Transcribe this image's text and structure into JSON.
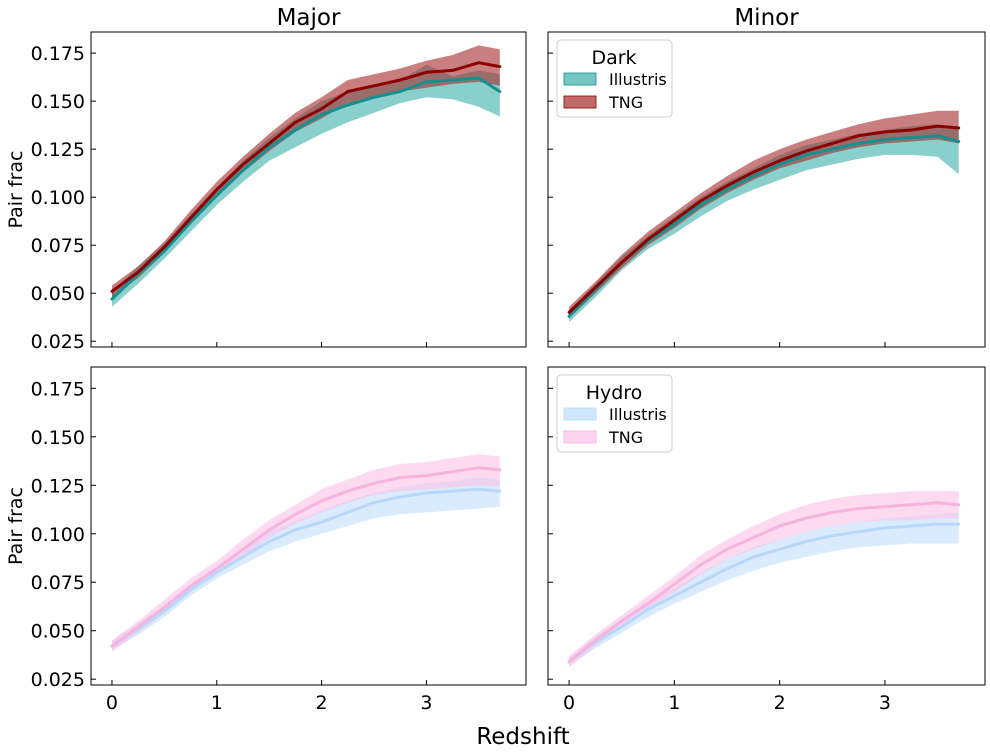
{
  "figure": {
    "xlabel": "Redshift",
    "ylabel": "Pair frac"
  },
  "chart_data": [
    {
      "type": "line",
      "title": "Major",
      "legend": null,
      "xlim": [
        -0.2,
        3.95
      ],
      "ylim": [
        0.022,
        0.186
      ],
      "xticks": [
        0,
        1,
        2,
        3
      ],
      "yticks": [
        0.025,
        0.05,
        0.075,
        0.1,
        0.125,
        0.15,
        0.175
      ],
      "series": [
        {
          "name": "Illustris",
          "color": "#15908f",
          "band_color": "#3aafa9",
          "band_opacity": 0.6,
          "x": [
            0,
            0.25,
            0.5,
            0.75,
            1.0,
            1.25,
            1.5,
            1.75,
            2.0,
            2.25,
            2.5,
            2.75,
            3.0,
            3.25,
            3.5,
            3.7
          ],
          "y": [
            0.047,
            0.06,
            0.072,
            0.087,
            0.101,
            0.114,
            0.126,
            0.135,
            0.143,
            0.148,
            0.152,
            0.155,
            0.16,
            0.161,
            0.162,
            0.155
          ],
          "lower": [
            0.043,
            0.055,
            0.068,
            0.082,
            0.096,
            0.108,
            0.119,
            0.126,
            0.133,
            0.139,
            0.144,
            0.149,
            0.152,
            0.151,
            0.147,
            0.142
          ],
          "upper": [
            0.051,
            0.064,
            0.076,
            0.091,
            0.105,
            0.119,
            0.131,
            0.141,
            0.15,
            0.155,
            0.158,
            0.161,
            0.169,
            0.163,
            0.166,
            0.164
          ]
        },
        {
          "name": "TNG",
          "color": "#8b0000",
          "band_color": "#a52a2a",
          "band_opacity": 0.6,
          "x": [
            0,
            0.25,
            0.5,
            0.75,
            1.0,
            1.25,
            1.5,
            1.75,
            2.0,
            2.25,
            2.5,
            2.75,
            3.0,
            3.25,
            3.5,
            3.7
          ],
          "y": [
            0.051,
            0.061,
            0.074,
            0.089,
            0.104,
            0.117,
            0.128,
            0.139,
            0.146,
            0.155,
            0.158,
            0.161,
            0.165,
            0.166,
            0.17,
            0.168
          ],
          "lower": [
            0.048,
            0.058,
            0.071,
            0.086,
            0.1,
            0.113,
            0.124,
            0.134,
            0.141,
            0.149,
            0.152,
            0.155,
            0.157,
            0.159,
            0.16,
            0.158
          ],
          "upper": [
            0.054,
            0.064,
            0.077,
            0.093,
            0.108,
            0.121,
            0.133,
            0.144,
            0.152,
            0.161,
            0.164,
            0.167,
            0.171,
            0.174,
            0.179,
            0.177
          ]
        }
      ]
    },
    {
      "type": "line",
      "title": "Minor",
      "legend": {
        "title": "Dark",
        "position": "top-left",
        "entries": [
          "Illustris",
          "TNG"
        ]
      },
      "xlim": [
        -0.2,
        3.95
      ],
      "ylim": [
        0.022,
        0.186
      ],
      "xticks": [
        0,
        1,
        2,
        3
      ],
      "yticks": [
        0.025,
        0.05,
        0.075,
        0.1,
        0.125,
        0.15,
        0.175
      ],
      "series": [
        {
          "name": "Illustris",
          "color": "#15908f",
          "band_color": "#3aafa9",
          "band_opacity": 0.6,
          "x": [
            0,
            0.25,
            0.5,
            0.75,
            1.0,
            1.25,
            1.5,
            1.75,
            2.0,
            2.25,
            2.5,
            2.75,
            3.0,
            3.25,
            3.5,
            3.7
          ],
          "y": [
            0.038,
            0.052,
            0.066,
            0.077,
            0.086,
            0.096,
            0.104,
            0.111,
            0.117,
            0.122,
            0.125,
            0.128,
            0.13,
            0.131,
            0.132,
            0.129
          ],
          "lower": [
            0.035,
            0.048,
            0.062,
            0.073,
            0.081,
            0.09,
            0.098,
            0.104,
            0.109,
            0.114,
            0.117,
            0.12,
            0.122,
            0.122,
            0.121,
            0.112
          ],
          "upper": [
            0.041,
            0.055,
            0.069,
            0.08,
            0.09,
            0.1,
            0.108,
            0.115,
            0.122,
            0.127,
            0.13,
            0.133,
            0.135,
            0.137,
            0.138,
            0.136
          ]
        },
        {
          "name": "TNG",
          "color": "#8b0000",
          "band_color": "#a52a2a",
          "band_opacity": 0.6,
          "x": [
            0,
            0.25,
            0.5,
            0.75,
            1.0,
            1.25,
            1.5,
            1.75,
            2.0,
            2.25,
            2.5,
            2.75,
            3.0,
            3.25,
            3.5,
            3.7
          ],
          "y": [
            0.04,
            0.053,
            0.066,
            0.078,
            0.088,
            0.098,
            0.106,
            0.113,
            0.119,
            0.124,
            0.128,
            0.132,
            0.134,
            0.135,
            0.137,
            0.136
          ],
          "lower": [
            0.037,
            0.05,
            0.063,
            0.075,
            0.084,
            0.094,
            0.102,
            0.109,
            0.115,
            0.119,
            0.123,
            0.126,
            0.128,
            0.129,
            0.13,
            0.128
          ],
          "upper": [
            0.043,
            0.056,
            0.07,
            0.082,
            0.092,
            0.102,
            0.111,
            0.119,
            0.125,
            0.13,
            0.134,
            0.138,
            0.141,
            0.143,
            0.145,
            0.145
          ]
        }
      ]
    },
    {
      "type": "line",
      "title": "",
      "legend": null,
      "xlim": [
        -0.2,
        3.95
      ],
      "ylim": [
        0.022,
        0.186
      ],
      "xticks": [
        0,
        1,
        2,
        3
      ],
      "yticks": [
        0.025,
        0.05,
        0.075,
        0.1,
        0.125,
        0.15,
        0.175
      ],
      "series": [
        {
          "name": "Illustris",
          "color": "#b8d8fa",
          "band_color": "#b3d7fb",
          "band_opacity": 0.5,
          "x": [
            0,
            0.25,
            0.5,
            0.75,
            1.0,
            1.25,
            1.5,
            1.75,
            2.0,
            2.25,
            2.5,
            2.75,
            3.0,
            3.25,
            3.5,
            3.7
          ],
          "y": [
            0.042,
            0.051,
            0.06,
            0.071,
            0.08,
            0.088,
            0.096,
            0.102,
            0.106,
            0.111,
            0.116,
            0.119,
            0.121,
            0.122,
            0.123,
            0.122
          ],
          "lower": [
            0.04,
            0.048,
            0.057,
            0.068,
            0.077,
            0.084,
            0.091,
            0.096,
            0.1,
            0.104,
            0.108,
            0.11,
            0.111,
            0.112,
            0.113,
            0.114
          ],
          "upper": [
            0.045,
            0.054,
            0.063,
            0.074,
            0.083,
            0.092,
            0.101,
            0.107,
            0.112,
            0.117,
            0.121,
            0.124,
            0.126,
            0.127,
            0.129,
            0.128
          ]
        },
        {
          "name": "TNG",
          "color": "#f7b3df",
          "band_color": "#fbc2e6",
          "band_opacity": 0.6,
          "x": [
            0,
            0.25,
            0.5,
            0.75,
            1.0,
            1.25,
            1.5,
            1.75,
            2.0,
            2.25,
            2.5,
            2.75,
            3.0,
            3.25,
            3.5,
            3.7
          ],
          "y": [
            0.042,
            0.052,
            0.062,
            0.073,
            0.082,
            0.092,
            0.102,
            0.11,
            0.117,
            0.122,
            0.126,
            0.129,
            0.13,
            0.132,
            0.134,
            0.133
          ],
          "lower": [
            0.039,
            0.049,
            0.059,
            0.07,
            0.079,
            0.088,
            0.098,
            0.105,
            0.111,
            0.116,
            0.12,
            0.122,
            0.123,
            0.124,
            0.125,
            0.124
          ],
          "upper": [
            0.045,
            0.055,
            0.066,
            0.077,
            0.086,
            0.097,
            0.107,
            0.115,
            0.123,
            0.128,
            0.133,
            0.136,
            0.137,
            0.139,
            0.141,
            0.14
          ]
        }
      ]
    },
    {
      "type": "line",
      "title": "",
      "legend": {
        "title": "Hydro",
        "position": "top-left",
        "entries": [
          "Illustris",
          "TNG"
        ]
      },
      "xlim": [
        -0.2,
        3.95
      ],
      "ylim": [
        0.022,
        0.186
      ],
      "xticks": [
        0,
        1,
        2,
        3
      ],
      "yticks": [
        0.025,
        0.05,
        0.075,
        0.1,
        0.125,
        0.15,
        0.175
      ],
      "series": [
        {
          "name": "Illustris",
          "color": "#b8d8fa",
          "band_color": "#b3d7fb",
          "band_opacity": 0.5,
          "x": [
            0,
            0.25,
            0.5,
            0.75,
            1.0,
            1.25,
            1.5,
            1.75,
            2.0,
            2.25,
            2.5,
            2.75,
            3.0,
            3.25,
            3.5,
            3.7
          ],
          "y": [
            0.034,
            0.044,
            0.052,
            0.061,
            0.068,
            0.075,
            0.082,
            0.088,
            0.092,
            0.096,
            0.099,
            0.101,
            0.103,
            0.104,
            0.105,
            0.105
          ],
          "lower": [
            0.032,
            0.041,
            0.049,
            0.057,
            0.064,
            0.07,
            0.076,
            0.081,
            0.085,
            0.088,
            0.091,
            0.093,
            0.094,
            0.095,
            0.095,
            0.095
          ],
          "upper": [
            0.036,
            0.047,
            0.056,
            0.065,
            0.072,
            0.08,
            0.087,
            0.093,
            0.097,
            0.101,
            0.104,
            0.106,
            0.108,
            0.109,
            0.11,
            0.111
          ]
        },
        {
          "name": "TNG",
          "color": "#f7b3df",
          "band_color": "#fbc2e6",
          "band_opacity": 0.6,
          "x": [
            0,
            0.25,
            0.5,
            0.75,
            1.0,
            1.25,
            1.5,
            1.75,
            2.0,
            2.25,
            2.5,
            2.75,
            3.0,
            3.25,
            3.5,
            3.7
          ],
          "y": [
            0.034,
            0.045,
            0.055,
            0.064,
            0.074,
            0.084,
            0.092,
            0.098,
            0.104,
            0.108,
            0.111,
            0.113,
            0.114,
            0.115,
            0.116,
            0.115
          ],
          "lower": [
            0.031,
            0.042,
            0.052,
            0.061,
            0.07,
            0.079,
            0.087,
            0.092,
            0.097,
            0.101,
            0.104,
            0.106,
            0.107,
            0.107,
            0.108,
            0.108
          ],
          "upper": [
            0.037,
            0.048,
            0.058,
            0.068,
            0.078,
            0.089,
            0.097,
            0.104,
            0.11,
            0.115,
            0.118,
            0.12,
            0.121,
            0.122,
            0.122,
            0.122
          ]
        }
      ]
    }
  ]
}
